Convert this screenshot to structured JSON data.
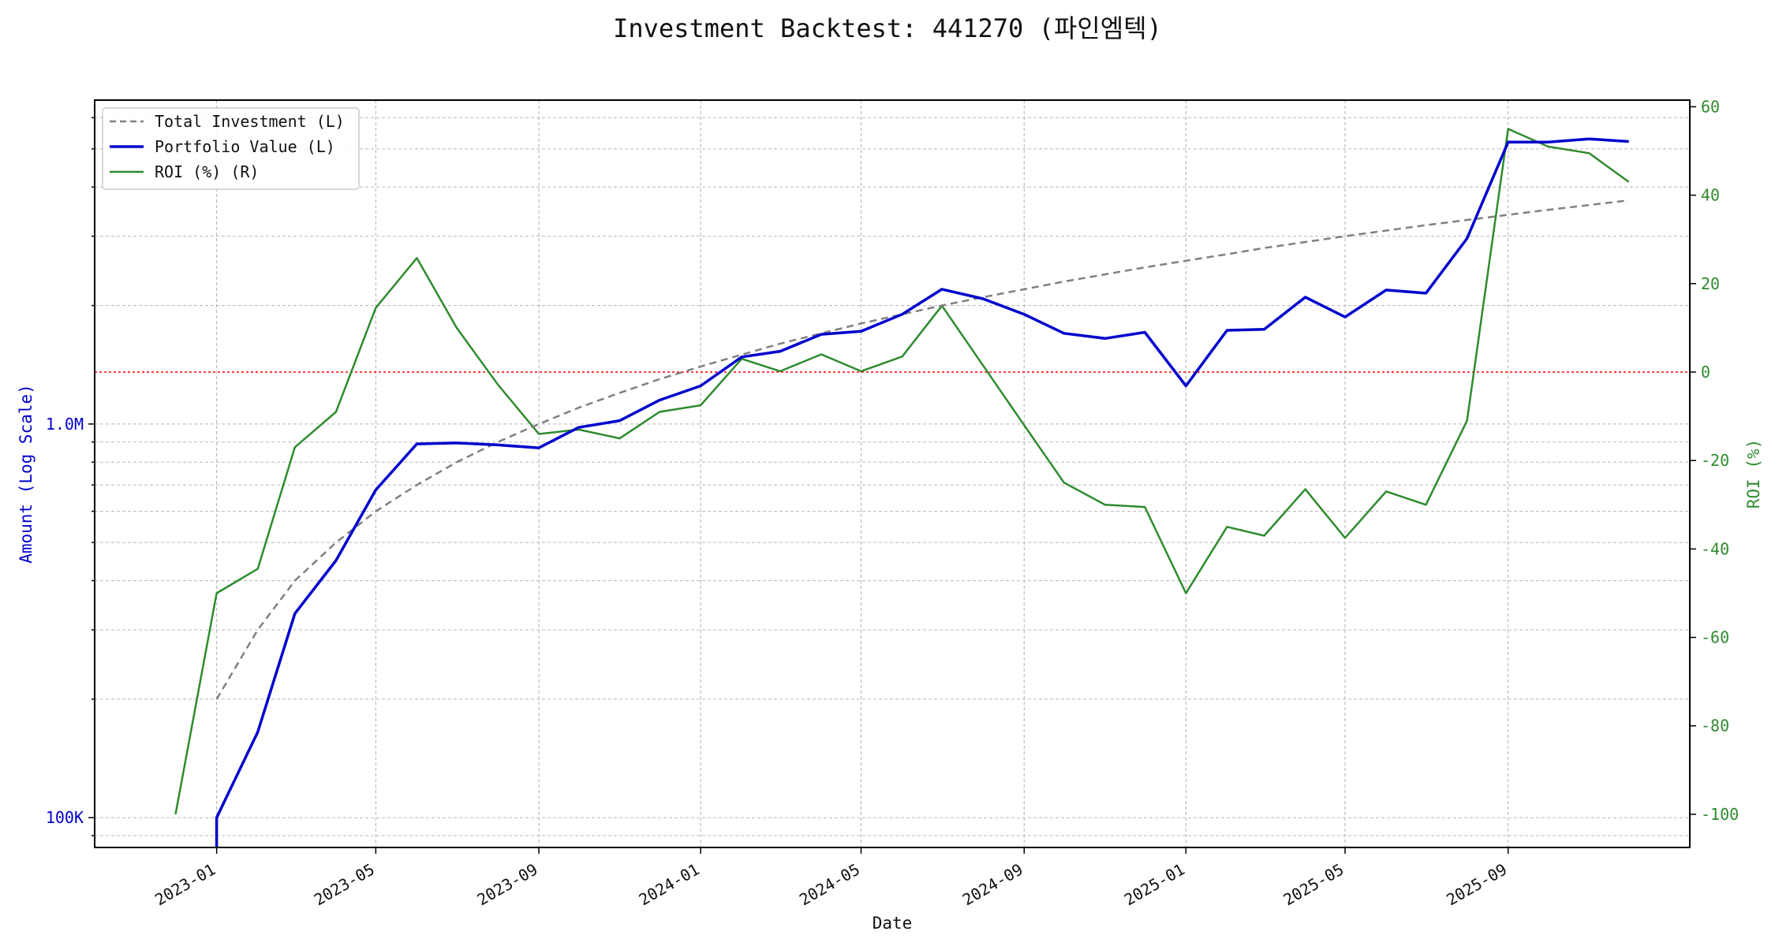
{
  "chart_data": {
    "type": "line",
    "title": "Investment Backtest: 441270 (파인엠텍)",
    "xlabel": "Date",
    "ylabel_left": "Amount (Log Scale)",
    "ylabel_right": "ROI (%)",
    "x_range": [
      "2022-10-01",
      "2026-01-16"
    ],
    "x_ticks": [
      {
        "date": "2023-01-01",
        "label": "2023-01"
      },
      {
        "date": "2023-05-01",
        "label": "2023-05"
      },
      {
        "date": "2023-09-01",
        "label": "2023-09"
      },
      {
        "date": "2024-01-01",
        "label": "2024-01"
      },
      {
        "date": "2024-05-01",
        "label": "2024-05"
      },
      {
        "date": "2024-09-01",
        "label": "2024-09"
      },
      {
        "date": "2025-01-01",
        "label": "2025-01"
      },
      {
        "date": "2025-05-01",
        "label": "2025-05"
      },
      {
        "date": "2025-09-01",
        "label": "2025-09"
      }
    ],
    "y_left": {
      "scale": "log",
      "range": [
        84000,
        6650000
      ],
      "major_ticks": [
        {
          "value": 100000,
          "label": "100K"
        },
        {
          "value": 1000000,
          "label": "1.0M"
        }
      ]
    },
    "y_right": {
      "range": [
        -107.5,
        61.5
      ],
      "ticks": [
        -100,
        -80,
        -60,
        -40,
        -20,
        0,
        20,
        40,
        60
      ]
    },
    "zero_line": {
      "axis": "right",
      "value": 0,
      "color": "#ff0000"
    },
    "grid": true,
    "legend_position": "top-left",
    "colors": {
      "investment": "#808080",
      "portfolio": "#0000cc",
      "roi": "#2e8b2e"
    },
    "dates": [
      "2022-12-01",
      "2023-01-01",
      "2023-02-01",
      "2023-03-01",
      "2023-04-01",
      "2023-05-01",
      "2023-06-01",
      "2023-07-01",
      "2023-08-01",
      "2023-09-01",
      "2023-10-01",
      "2023-11-01",
      "2023-12-01",
      "2024-01-01",
      "2024-02-01",
      "2024-03-01",
      "2024-04-01",
      "2024-05-01",
      "2024-06-01",
      "2024-07-01",
      "2024-08-01",
      "2024-09-01",
      "2024-10-01",
      "2024-11-01",
      "2024-12-01",
      "2025-01-01",
      "2025-02-01",
      "2025-03-01",
      "2025-04-01",
      "2025-05-01",
      "2025-06-01",
      "2025-07-01",
      "2025-08-01",
      "2025-09-01",
      "2025-10-01",
      "2025-11-01",
      "2025-12-01"
    ],
    "series": [
      {
        "name": "Total Investment (L)",
        "axis": "left",
        "style": "dashed",
        "values": [
          null,
          200000,
          300000,
          400000,
          500000,
          600000,
          700000,
          800000,
          900000,
          1000000,
          1100000,
          1200000,
          1300000,
          1400000,
          1500000,
          1600000,
          1700000,
          1800000,
          1900000,
          2000000,
          2100000,
          2200000,
          2300000,
          2400000,
          2500000,
          2600000,
          2700000,
          2800000,
          2900000,
          3000000,
          3100000,
          3200000,
          3300000,
          3400000,
          3500000,
          3600000,
          3700000
        ]
      },
      {
        "name": "Portfolio Value (L)",
        "axis": "left",
        "style": "solid",
        "values": [
          null,
          100000,
          165000,
          330000,
          450000,
          680000,
          890000,
          895000,
          885000,
          870000,
          980000,
          1020000,
          1150000,
          1250000,
          1480000,
          1530000,
          1690000,
          1720000,
          1900000,
          2200000,
          2080000,
          1900000,
          1700000,
          1650000,
          1710000,
          1250000,
          1730000,
          1740000,
          2100000,
          1870000,
          2190000,
          2150000,
          2960000,
          5200000,
          5200000,
          5300000,
          5220000
        ]
      },
      {
        "name": "ROI (%) (R)",
        "axis": "right",
        "style": "solid",
        "values": [
          -100,
          -50,
          -44.5,
          -17,
          -9,
          14.5,
          25.8,
          10,
          -2.8,
          -14,
          -13,
          -15,
          -9,
          -7.5,
          3,
          0.2,
          4,
          0.2,
          3.5,
          15,
          1.5,
          -12,
          -25,
          -30,
          -30.5,
          -50,
          -35,
          -37,
          -26.5,
          -37.5,
          -27,
          -30,
          -11,
          55,
          51,
          49.5,
          43
        ]
      }
    ]
  }
}
